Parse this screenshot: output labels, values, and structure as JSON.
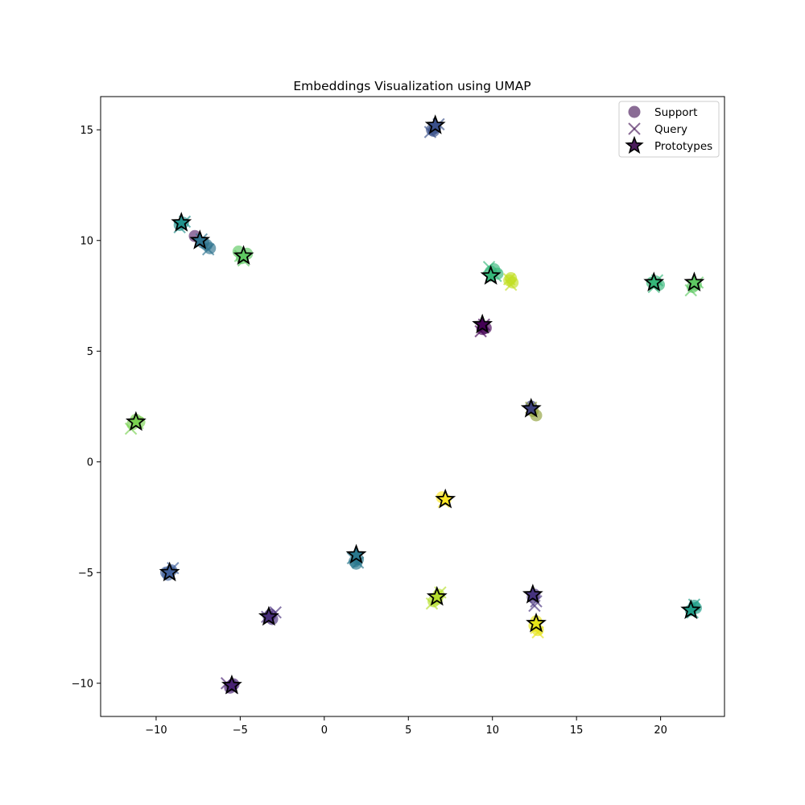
{
  "chart_data": {
    "type": "scatter",
    "title": "Embeddings Visualization using UMAP",
    "xlabel": "",
    "ylabel": "",
    "xlim": [
      -13.3,
      23.8
    ],
    "ylim": [
      -11.5,
      16.5
    ],
    "xticks": [
      -10,
      -5,
      0,
      5,
      10,
      15,
      20
    ],
    "yticks": [
      -10,
      -5,
      0,
      5,
      10,
      15
    ],
    "xtick_labels": [
      "−10",
      "−5",
      "0",
      "5",
      "10",
      "15",
      "20"
    ],
    "ytick_labels": [
      "−10",
      "−5",
      "0",
      "5",
      "10",
      "15"
    ],
    "grid": false,
    "legend": {
      "placement": "top-right",
      "entries": [
        "Support",
        "Query",
        "Prototypes"
      ]
    },
    "colors": {
      "legend_support": "#4b1d5c",
      "legend_query": "#4b1d5c",
      "prototype_edge": "#000000"
    },
    "clusters": [
      {
        "color": "#3b518b",
        "support": [
          [
            6.4,
            15.0
          ],
          [
            6.6,
            15.1
          ],
          [
            6.5,
            14.95
          ]
        ],
        "query": [
          [
            6.3,
            14.9
          ],
          [
            6.8,
            15.25
          ]
        ],
        "prototype": [
          6.6,
          15.2
        ]
      },
      {
        "color": "#2c728e",
        "support": [
          [
            -7.0,
            9.8
          ],
          [
            -6.8,
            9.65
          ],
          [
            -7.2,
            9.9
          ]
        ],
        "query": [
          [
            -6.9,
            9.6
          ],
          [
            -7.3,
            10.05
          ]
        ],
        "prototype": [
          -7.4,
          10.0
        ]
      },
      {
        "color": "#5b2a6e",
        "support": [
          [
            -7.7,
            10.2
          ]
        ],
        "query": [],
        "prototype": null
      },
      {
        "color": "#21918c",
        "support": [
          [
            -8.6,
            10.7
          ],
          [
            -8.4,
            10.8
          ]
        ],
        "query": [
          [
            -8.6,
            10.6
          ],
          [
            -8.3,
            10.85
          ]
        ],
        "prototype": [
          -8.5,
          10.8
        ]
      },
      {
        "color": "#5ec962",
        "support": [
          [
            -5.1,
            9.5
          ],
          [
            -4.9,
            9.2
          ],
          [
            -4.6,
            9.4
          ]
        ],
        "query": [
          [
            -4.8,
            9.1
          ],
          [
            -5.0,
            9.3
          ]
        ],
        "prototype": [
          -4.8,
          9.3
        ]
      },
      {
        "color": "#35b779",
        "support": [
          [
            10.1,
            8.7
          ],
          [
            9.9,
            8.6
          ],
          [
            10.3,
            8.5
          ]
        ],
        "query": [
          [
            9.8,
            8.8
          ],
          [
            10.2,
            8.4
          ]
        ],
        "prototype": [
          9.9,
          8.4
        ]
      },
      {
        "color": "#c2df23",
        "support": [
          [
            11.0,
            8.2
          ],
          [
            11.2,
            8.1
          ],
          [
            11.1,
            8.3
          ]
        ],
        "query": [
          [
            11.1,
            8.0
          ],
          [
            11.0,
            8.25
          ]
        ],
        "prototype": null
      },
      {
        "color": "#35b779",
        "support": [
          [
            19.5,
            8.1
          ],
          [
            19.9,
            8.0
          ],
          [
            19.7,
            8.15
          ]
        ],
        "query": [
          [
            19.6,
            7.9
          ],
          [
            19.8,
            8.2
          ]
        ],
        "prototype": [
          19.6,
          8.1
        ]
      },
      {
        "color": "#5ec962",
        "support": [
          [
            21.9,
            7.9
          ],
          [
            22.1,
            8.0
          ]
        ],
        "query": [
          [
            21.8,
            7.75
          ],
          [
            22.2,
            8.1
          ]
        ],
        "prototype": [
          22.0,
          8.1
        ]
      },
      {
        "color": "#440154",
        "support": [
          [
            9.4,
            6.0
          ],
          [
            9.6,
            6.05
          ]
        ],
        "query": [
          [
            9.3,
            5.9
          ],
          [
            9.5,
            6.2
          ]
        ],
        "prototype": [
          9.4,
          6.2
        ]
      },
      {
        "color": "#7ad151",
        "support": [
          [
            -11.2,
            1.9
          ],
          [
            -11.4,
            1.7
          ],
          [
            -11.0,
            1.8
          ]
        ],
        "query": [
          [
            -11.5,
            1.5
          ],
          [
            -11.1,
            1.75
          ]
        ],
        "prototype": [
          -11.2,
          1.8
        ]
      },
      {
        "color": "#8fa03a",
        "support": [
          [
            12.6,
            2.1
          ],
          [
            12.4,
            2.3
          ]
        ],
        "query": [
          [
            12.3,
            2.45
          ]
        ],
        "prototype": null
      },
      {
        "color": "#3b3f7a",
        "support": [
          [
            12.3,
            2.5
          ]
        ],
        "query": [],
        "prototype": [
          12.3,
          2.4
        ]
      },
      {
        "color": "#fde725",
        "support": [
          [
            7.0,
            -1.6
          ],
          [
            7.2,
            -1.7
          ]
        ],
        "query": [
          [
            7.1,
            -1.8
          ]
        ],
        "prototype": [
          7.2,
          -1.7
        ]
      },
      {
        "color": "#2a788e",
        "support": [
          [
            1.8,
            -4.5
          ],
          [
            2.0,
            -4.4
          ],
          [
            1.9,
            -4.6
          ]
        ],
        "query": [
          [
            2.0,
            -4.55
          ],
          [
            1.7,
            -4.35
          ]
        ],
        "prototype": [
          1.9,
          -4.2
        ]
      },
      {
        "color": "#3e5e9a",
        "support": [
          [
            -9.3,
            -5.1
          ],
          [
            -9.1,
            -4.9
          ],
          [
            -9.4,
            -5.0
          ]
        ],
        "query": [
          [
            -9.0,
            -4.8
          ],
          [
            -9.2,
            -5.05
          ]
        ],
        "prototype": [
          -9.2,
          -5.0
        ]
      },
      {
        "color": "#b5de2b",
        "support": [
          [
            6.5,
            -6.3
          ],
          [
            6.7,
            -6.2
          ],
          [
            6.8,
            -6.0
          ]
        ],
        "query": [
          [
            6.4,
            -6.4
          ],
          [
            6.9,
            -5.9
          ]
        ],
        "prototype": [
          6.7,
          -6.1
        ]
      },
      {
        "color": "#46337e",
        "support": [
          [
            12.4,
            -6.1
          ],
          [
            12.5,
            -6.0
          ]
        ],
        "query": [
          [
            12.6,
            -6.3
          ],
          [
            12.5,
            -6.5
          ]
        ],
        "prototype": [
          12.4,
          -6.0
        ]
      },
      {
        "color": "#e6e419",
        "support": [
          [
            12.6,
            -7.2
          ],
          [
            12.7,
            -7.6
          ],
          [
            12.5,
            -7.4
          ]
        ],
        "query": [
          [
            12.7,
            -7.7
          ],
          [
            12.6,
            -7.5
          ]
        ],
        "prototype": [
          12.6,
          -7.3
        ]
      },
      {
        "color": "#1f9e89",
        "support": [
          [
            22.0,
            -6.5
          ],
          [
            21.8,
            -6.7
          ],
          [
            22.1,
            -6.6
          ]
        ],
        "query": [
          [
            21.9,
            -6.8
          ],
          [
            22.0,
            -6.45
          ]
        ],
        "prototype": [
          21.8,
          -6.7
        ]
      },
      {
        "color": "#472d7b",
        "support": [
          [
            -3.2,
            -6.9
          ],
          [
            -3.1,
            -7.1
          ],
          [
            -3.3,
            -7.0
          ]
        ],
        "query": [
          [
            -2.9,
            -6.8
          ],
          [
            -3.4,
            -7.0
          ]
        ],
        "prototype": [
          -3.3,
          -7.0
        ]
      },
      {
        "color": "#482173",
        "support": [
          [
            -5.5,
            -10.1
          ],
          [
            -5.6,
            -10.2
          ],
          [
            -5.4,
            -10.05
          ]
        ],
        "query": [
          [
            -5.8,
            -10.0
          ],
          [
            -5.5,
            -10.2
          ]
        ],
        "prototype": [
          -5.5,
          -10.1
        ]
      }
    ]
  }
}
